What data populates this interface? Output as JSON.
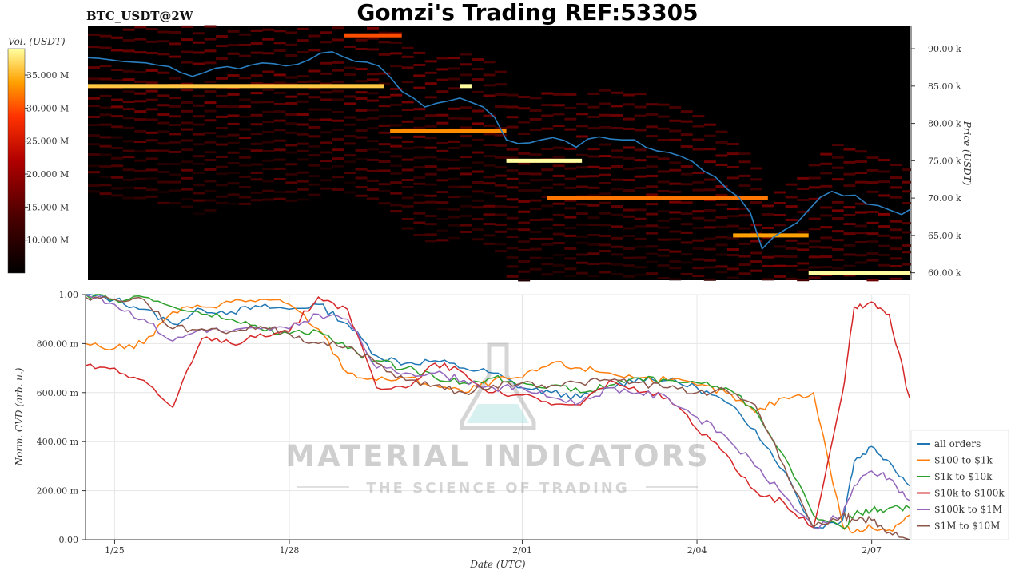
{
  "header": {
    "symbol": "BTC_USDT@2W",
    "title": "Gomzi's Trading REF:53305"
  },
  "watermark": {
    "brand": "MATERIAL INDICATORS",
    "tagline": "THE SCIENCE OF TRADING"
  },
  "colors": {
    "heatmap_bg": "#000000",
    "price_line": "#2a7fc1",
    "all_orders": "#1f77b4",
    "usd_100_1k": "#ff7f0e",
    "usd_1k_10k": "#2ca02c",
    "usd_10k_100k": "#d62728",
    "usd_100k_1m": "#9467bd",
    "usd_1m_10m": "#8c564b"
  },
  "chart_data": [
    {
      "type": "heatmap",
      "title": "BTC_USDT@2W",
      "ylabel": "Price (USDT)",
      "ylim": [
        59000,
        93000
      ],
      "yticks": [
        {
          "value": 90000,
          "label": "90.00 k"
        },
        {
          "value": 85000,
          "label": "85.00 k"
        },
        {
          "value": 80000,
          "label": "80.00 k"
        },
        {
          "value": 75000,
          "label": "75.00 k"
        },
        {
          "value": 70000,
          "label": "70.00 k"
        },
        {
          "value": 65000,
          "label": "65.00 k"
        },
        {
          "value": 60000,
          "label": "60.00 k"
        }
      ],
      "colorbar": {
        "label": "Vol. (USDT)",
        "range": [
          5000000,
          39000000
        ],
        "ticks": [
          {
            "value": 35000000,
            "label": "35.000 M"
          },
          {
            "value": 30000000,
            "label": "30.000 M"
          },
          {
            "value": 25000000,
            "label": "25.000 M"
          },
          {
            "value": 20000000,
            "label": "20.000 M"
          },
          {
            "value": 15000000,
            "label": "15.000 M"
          },
          {
            "value": 10000000,
            "label": "10.000 M"
          }
        ]
      },
      "xlim": [
        -0.5,
        13.65
      ],
      "price_series": {
        "x": [
          -0.5,
          -0.3,
          -0.1,
          0.1,
          0.3,
          0.5,
          0.7,
          0.9,
          1.1,
          1.3,
          1.5,
          1.7,
          1.9,
          2.1,
          2.3,
          2.5,
          2.7,
          2.9,
          3.1,
          3.3,
          3.5,
          3.7,
          3.9,
          4.1,
          4.3,
          4.5,
          4.7,
          4.9,
          5.1,
          5.3,
          5.5,
          5.7,
          5.9,
          6.1,
          6.3,
          6.5,
          6.7,
          6.9,
          7.1,
          7.3,
          7.5,
          7.7,
          7.9,
          8.1,
          8.3,
          8.5,
          8.7,
          8.9,
          9.1,
          9.3,
          9.5,
          9.7,
          9.9,
          10.1,
          10.3,
          10.5,
          10.7,
          10.9,
          11.1,
          11.3,
          11.5,
          11.7,
          11.9,
          12.1,
          12.3,
          12.5,
          12.7,
          12.9,
          13.1,
          13.3,
          13.5,
          13.65
        ],
        "y": [
          88800,
          88700,
          88500,
          88300,
          88200,
          88100,
          87800,
          87600,
          86800,
          86300,
          86800,
          87400,
          87600,
          87300,
          87800,
          88100,
          88000,
          87700,
          87900,
          88500,
          89400,
          89600,
          88900,
          88300,
          88200,
          87700,
          86200,
          84300,
          83400,
          82200,
          82700,
          83000,
          83400,
          82800,
          82200,
          80800,
          77800,
          77300,
          77400,
          77800,
          78100,
          77700,
          76800,
          77900,
          78200,
          77900,
          77800,
          77800,
          76800,
          76300,
          76100,
          75600,
          74900,
          73600,
          72800,
          71200,
          70100,
          68000,
          63200,
          64800,
          65800,
          66700,
          68400,
          70100,
          70900,
          70300,
          70400,
          69200,
          69000,
          68400,
          67800,
          68500
        ]
      },
      "liquidity_bands": [
        {
          "price": 85000,
          "x": [
            -0.5,
            4.6
          ],
          "vol": 36000000
        },
        {
          "price": 91800,
          "x": [
            3.9,
            4.9
          ],
          "vol": 30000000
        },
        {
          "price": 85000,
          "x": [
            5.9,
            6.1
          ],
          "vol": 39000000
        },
        {
          "price": 79000,
          "x": [
            4.7,
            6.7
          ],
          "vol": 33000000
        },
        {
          "price": 75000,
          "x": [
            6.7,
            8.0
          ],
          "vol": 39000000
        },
        {
          "price": 70000,
          "x": [
            7.4,
            11.2
          ],
          "vol": 32000000
        },
        {
          "price": 65000,
          "x": [
            10.6,
            11.9
          ],
          "vol": 34000000
        },
        {
          "price": 60000,
          "x": [
            11.9,
            13.65
          ],
          "vol": 39000000
        }
      ]
    },
    {
      "type": "line",
      "xlabel": "Date (UTC)",
      "ylabel": "Norm. CVD (arb. u.)",
      "ylim": [
        0,
        1
      ],
      "xlim": [
        -0.5,
        13.65
      ],
      "grid": true,
      "legend": "bottom-right",
      "xticks": [
        {
          "value": 0,
          "label": "1/25"
        },
        {
          "value": 3,
          "label": "1/28"
        },
        {
          "value": 7,
          "label": "2/01"
        },
        {
          "value": 10,
          "label": "2/04"
        },
        {
          "value": 13,
          "label": "2/07"
        }
      ],
      "yticks": [
        {
          "value": 0,
          "label": "0.00"
        },
        {
          "value": 0.2,
          "label": "200.00 m"
        },
        {
          "value": 0.4,
          "label": "400.00 m"
        },
        {
          "value": 0.6,
          "label": "600.00 m"
        },
        {
          "value": 0.8,
          "label": "800.00 m"
        },
        {
          "value": 1,
          "label": "1.00"
        }
      ],
      "x": [
        -0.5,
        0.0,
        0.5,
        1.0,
        1.5,
        2.0,
        2.5,
        3.0,
        3.5,
        4.0,
        4.5,
        5.0,
        5.5,
        6.0,
        6.5,
        7.0,
        7.5,
        8.0,
        8.5,
        9.0,
        9.5,
        10.0,
        10.5,
        11.0,
        11.5,
        12.0,
        12.5,
        12.7,
        13.0,
        13.3,
        13.65
      ],
      "series": [
        {
          "name": "all orders",
          "color_key": "all_orders",
          "values": [
            1.0,
            0.98,
            0.94,
            0.88,
            0.94,
            0.93,
            0.95,
            0.94,
            0.96,
            0.88,
            0.75,
            0.72,
            0.73,
            0.7,
            0.68,
            0.62,
            0.6,
            0.58,
            0.62,
            0.66,
            0.65,
            0.62,
            0.56,
            0.45,
            0.28,
            0.05,
            0.08,
            0.32,
            0.38,
            0.32,
            0.22
          ]
        },
        {
          "name": "$100 to $1k",
          "color_key": "usd_100_1k",
          "values": [
            0.8,
            0.78,
            0.8,
            0.93,
            0.95,
            0.97,
            0.98,
            0.96,
            0.86,
            0.68,
            0.65,
            0.66,
            0.63,
            0.6,
            0.65,
            0.66,
            0.72,
            0.7,
            0.68,
            0.66,
            0.65,
            0.63,
            0.6,
            0.52,
            0.58,
            0.6,
            0.06,
            0.03,
            0.05,
            0.04,
            0.1
          ]
        },
        {
          "name": "$1k to $10k",
          "color_key": "usd_1k_10k",
          "values": [
            1.0,
            0.98,
            0.99,
            0.95,
            0.92,
            0.9,
            0.86,
            0.84,
            0.85,
            0.78,
            0.73,
            0.7,
            0.66,
            0.64,
            0.66,
            0.64,
            0.63,
            0.6,
            0.63,
            0.66,
            0.65,
            0.64,
            0.62,
            0.53,
            0.34,
            0.1,
            0.05,
            0.1,
            0.12,
            0.13,
            0.13
          ]
        },
        {
          "name": "$10k to $100k",
          "color_key": "usd_10k_100k",
          "values": [
            0.71,
            0.7,
            0.65,
            0.54,
            0.82,
            0.8,
            0.84,
            0.85,
            0.99,
            0.94,
            0.62,
            0.62,
            0.72,
            0.68,
            0.6,
            0.59,
            0.55,
            0.55,
            0.65,
            0.6,
            0.58,
            0.45,
            0.35,
            0.2,
            0.15,
            0.05,
            0.6,
            0.95,
            0.97,
            0.92,
            0.58
          ]
        },
        {
          "name": "$100k to $1M",
          "color_key": "usd_100k_1m",
          "values": [
            1.0,
            0.96,
            0.9,
            0.81,
            0.86,
            0.85,
            0.86,
            0.86,
            0.92,
            0.9,
            0.7,
            0.68,
            0.68,
            0.65,
            0.62,
            0.62,
            0.58,
            0.56,
            0.62,
            0.6,
            0.58,
            0.5,
            0.42,
            0.3,
            0.18,
            0.05,
            0.1,
            0.22,
            0.28,
            0.25,
            0.16
          ]
        },
        {
          "name": "$1M to $10M",
          "color_key": "usd_1m_10m",
          "values": [
            0.99,
            0.98,
            0.98,
            0.86,
            0.86,
            0.85,
            0.87,
            0.84,
            0.8,
            0.79,
            0.72,
            0.65,
            0.63,
            0.6,
            0.63,
            0.64,
            0.63,
            0.64,
            0.65,
            0.64,
            0.62,
            0.6,
            0.61,
            0.55,
            0.3,
            0.05,
            0.1,
            0.08,
            0.08,
            0.03,
            0.0
          ]
        }
      ]
    }
  ]
}
